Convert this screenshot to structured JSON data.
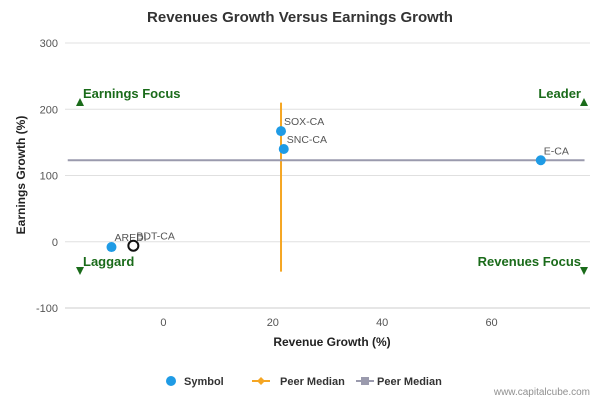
{
  "chart_data": {
    "type": "scatter",
    "title": "Revenues Growth Versus Earnings Growth",
    "xlabel": "Revenue Growth (%)",
    "ylabel": "Earnings Growth (%)",
    "xlim": [
      -18,
      78
    ],
    "ylim": [
      -100,
      300
    ],
    "xticks": [
      0,
      20,
      40,
      60
    ],
    "yticks": [
      -100,
      0,
      100,
      200,
      300
    ],
    "grid_y": true,
    "points": [
      {
        "label": "SOX-CA",
        "x": 21.5,
        "y": 167,
        "style": "symbol"
      },
      {
        "label": "SNC-CA",
        "x": 22,
        "y": 140,
        "style": "symbol"
      },
      {
        "label": "E-CA",
        "x": 69,
        "y": 123,
        "style": "symbol"
      },
      {
        "label": "AREDI",
        "x": -9.5,
        "y": -8,
        "style": "symbol"
      },
      {
        "label": "BDT-CA",
        "x": -5.5,
        "y": -6,
        "style": "highlight"
      }
    ],
    "peer_median_x": {
      "value": 21.5,
      "y_range": [
        -45,
        210
      ],
      "color": "#f5a623"
    },
    "peer_median_y": {
      "value": 123,
      "x_range": [
        -17.5,
        77
      ],
      "color": "#9a9aad"
    },
    "quadrants": [
      {
        "name": "Earnings Focus",
        "position": "top-left",
        "arrow": "up"
      },
      {
        "name": "Leader",
        "position": "top-right",
        "arrow": "up"
      },
      {
        "name": "Laggard",
        "position": "bottom-left",
        "arrow": "down"
      },
      {
        "name": "Revenues Focus",
        "position": "bottom-right",
        "arrow": "down"
      }
    ],
    "legend": [
      {
        "name": "Symbol",
        "kind": "dot",
        "color": "#1f9be5"
      },
      {
        "name": "Peer Median",
        "kind": "line-diamond",
        "color": "#f5a623"
      },
      {
        "name": "Peer Median",
        "kind": "line-square",
        "color": "#9a9aad"
      }
    ],
    "legend_position": "bottom-center"
  },
  "colors": {
    "symbol": "#1f9be5",
    "quadrant_text": "#1a6b1a",
    "gridline": "#e0e0e0"
  },
  "credit": "www.capitalcube.com"
}
